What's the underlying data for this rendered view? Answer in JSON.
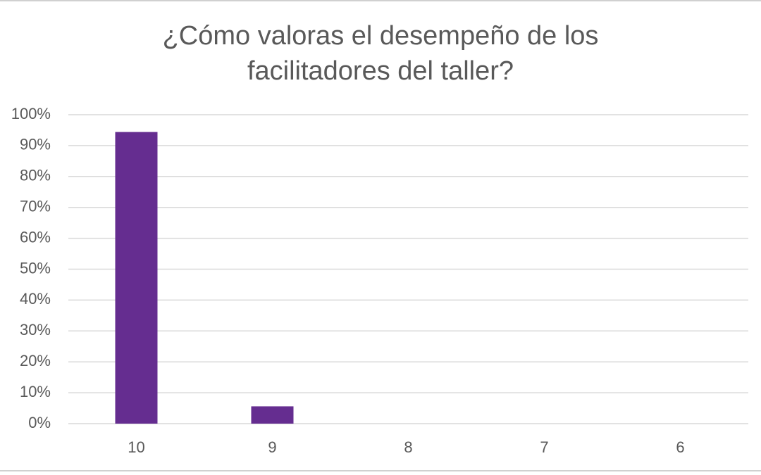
{
  "chart_data": {
    "type": "bar",
    "title": "¿Cómo valoras el desempeño de los facilitadores del taller?",
    "categories": [
      "10",
      "9",
      "8",
      "7",
      "6"
    ],
    "values": [
      94.4,
      5.6,
      0,
      0,
      0
    ],
    "color": "#652d90",
    "ylim": [
      0,
      100
    ],
    "yticks": [
      {
        "value": 0,
        "label": "0%"
      },
      {
        "value": 10,
        "label": "10%"
      },
      {
        "value": 20,
        "label": "20%"
      },
      {
        "value": 30,
        "label": "30%"
      },
      {
        "value": 40,
        "label": "40%"
      },
      {
        "value": 50,
        "label": "50%"
      },
      {
        "value": 60,
        "label": "60%"
      },
      {
        "value": 70,
        "label": "70%"
      },
      {
        "value": 80,
        "label": "80%"
      },
      {
        "value": 90,
        "label": "90%"
      },
      {
        "value": 100,
        "label": "100%"
      }
    ],
    "grid": true
  }
}
